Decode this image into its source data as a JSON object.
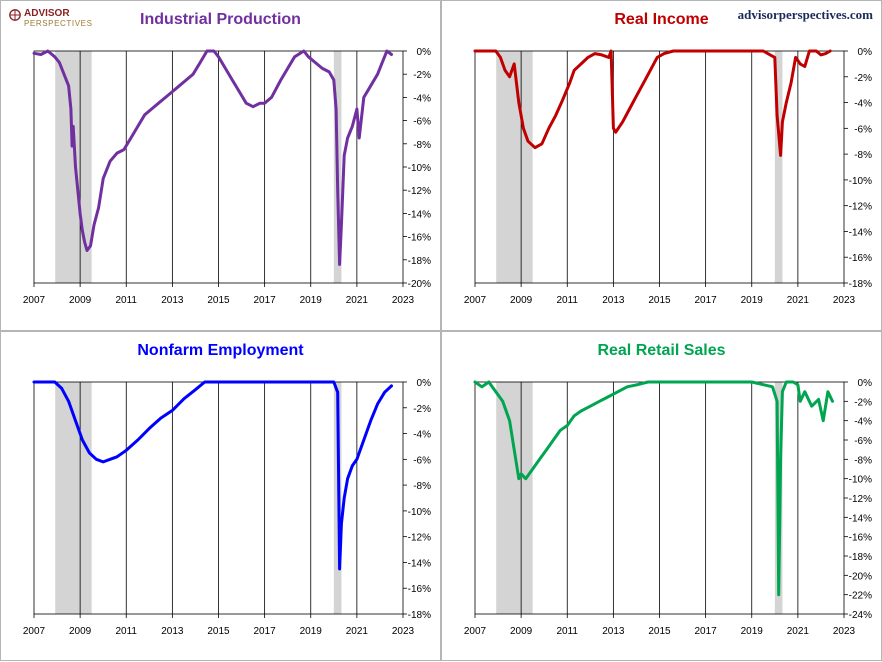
{
  "brand": {
    "name": "ADVISOR",
    "sub": "PERSPECTIVES"
  },
  "site": "advisorperspectives.com",
  "chart_data": [
    {
      "type": "line",
      "title": "Industrial Production",
      "color": "#7030a0",
      "xlim": [
        2007,
        2023
      ],
      "ylim": [
        -20,
        0
      ],
      "xticks": [
        "2007",
        "2009",
        "2011",
        "2013",
        "2015",
        "2017",
        "2019",
        "2021",
        "2023"
      ],
      "yticks": [
        "0%",
        "-2%",
        "-4%",
        "-6%",
        "-8%",
        "-10%",
        "-12%",
        "-14%",
        "-16%",
        "-18%",
        "-20%"
      ],
      "recessions": [
        [
          2007.92,
          2009.5
        ],
        [
          2020.0,
          2020.33
        ]
      ],
      "series": [
        {
          "x": [
            2007.0,
            2007.3,
            2007.6,
            2007.9,
            2008.1,
            2008.3,
            2008.5,
            2008.6,
            2008.65,
            2008.7,
            2008.8,
            2008.9,
            2009.0,
            2009.1,
            2009.2,
            2009.3,
            2009.45,
            2009.6,
            2009.8,
            2010.0,
            2010.3,
            2010.6,
            2010.9,
            2011.2,
            2011.5,
            2011.8,
            2012.1,
            2012.4,
            2012.7,
            2013.0,
            2013.3,
            2013.6,
            2013.9,
            2014.2,
            2014.5,
            2014.8,
            2015.0,
            2015.3,
            2015.6,
            2015.9,
            2016.2,
            2016.5,
            2016.8,
            2017.0,
            2017.3,
            2017.7,
            2018.0,
            2018.3,
            2018.7,
            2018.9,
            2019.2,
            2019.5,
            2019.8,
            2020.0,
            2020.1,
            2020.17,
            2020.25,
            2020.33,
            2020.45,
            2020.6,
            2020.8,
            2021.0,
            2021.1,
            2021.3,
            2021.6,
            2021.9,
            2022.1,
            2022.3,
            2022.5
          ],
          "y": [
            -0.2,
            -0.3,
            0,
            -0.5,
            -1,
            -2,
            -3,
            -5,
            -8.2,
            -6.5,
            -10,
            -12,
            -14,
            -15.5,
            -16.5,
            -17.2,
            -16.8,
            -15,
            -13.5,
            -11,
            -9.5,
            -8.8,
            -8.5,
            -7.5,
            -6.5,
            -5.5,
            -5,
            -4.5,
            -4,
            -3.5,
            -3,
            -2.5,
            -2,
            -1,
            0,
            0,
            -0.5,
            -1.5,
            -2.5,
            -3.5,
            -4.5,
            -4.8,
            -4.5,
            -4.5,
            -4,
            -2.5,
            -1.5,
            -0.5,
            0,
            -0.5,
            -1,
            -1.5,
            -1.8,
            -2.5,
            -5,
            -12,
            -18.4,
            -15,
            -9,
            -7.5,
            -6.5,
            -5,
            -7.5,
            -4,
            -3,
            -2,
            -1,
            0,
            -0.3
          ]
        }
      ]
    },
    {
      "type": "line",
      "title": "Real Income",
      "color": "#c00000",
      "xlim": [
        2007,
        2023
      ],
      "ylim": [
        -18,
        0
      ],
      "xticks": [
        "2007",
        "2009",
        "2011",
        "2013",
        "2015",
        "2017",
        "2019",
        "2021",
        "2023"
      ],
      "yticks": [
        "0%",
        "-2%",
        "-4%",
        "-6%",
        "-8%",
        "-10%",
        "-12%",
        "-14%",
        "-16%",
        "-18%"
      ],
      "recessions": [
        [
          2007.92,
          2009.5
        ],
        [
          2020.0,
          2020.33
        ]
      ],
      "series": [
        {
          "x": [
            2007.0,
            2007.5,
            2007.9,
            2008.1,
            2008.3,
            2008.5,
            2008.7,
            2008.9,
            2009.1,
            2009.3,
            2009.6,
            2009.9,
            2010.2,
            2010.5,
            2010.8,
            2011.1,
            2011.3,
            2011.6,
            2011.9,
            2012.2,
            2012.5,
            2012.8,
            2012.9,
            2013.0,
            2013.1,
            2013.4,
            2013.7,
            2014.0,
            2014.3,
            2014.6,
            2014.9,
            2015.2,
            2015.6,
            2016.0,
            2016.5,
            2017.0,
            2017.5,
            2018.0,
            2018.5,
            2019.0,
            2019.5,
            2019.8,
            2020.0,
            2020.1,
            2020.25,
            2020.33,
            2020.5,
            2020.7,
            2020.9,
            2021.1,
            2021.3,
            2021.5,
            2021.8,
            2022.0,
            2022.2,
            2022.4
          ],
          "y": [
            0,
            0,
            0,
            -0.5,
            -1.5,
            -2,
            -1,
            -4,
            -6,
            -7,
            -7.5,
            -7.2,
            -6,
            -5,
            -3.8,
            -2.5,
            -1.5,
            -1,
            -0.5,
            -0.2,
            -0.3,
            -0.5,
            0,
            -6,
            -6.3,
            -5.5,
            -4.5,
            -3.5,
            -2.5,
            -1.5,
            -0.5,
            -0.2,
            0,
            0,
            0,
            0,
            0,
            0,
            0,
            0,
            0,
            -0.3,
            -0.5,
            -5,
            -8.1,
            -5.5,
            -4,
            -2.5,
            -0.5,
            -1,
            -1.2,
            0,
            0,
            -0.3,
            -0.2,
            0
          ]
        }
      ]
    },
    {
      "type": "line",
      "title": "Nonfarm Employment",
      "color": "#0000ff",
      "xlim": [
        2007,
        2023
      ],
      "ylim": [
        -18,
        0
      ],
      "xticks": [
        "2007",
        "2009",
        "2011",
        "2013",
        "2015",
        "2017",
        "2019",
        "2021",
        "2023"
      ],
      "yticks": [
        "0%",
        "-2%",
        "-4%",
        "-6%",
        "-8%",
        "-10%",
        "-12%",
        "-14%",
        "-16%",
        "-18%"
      ],
      "recessions": [
        [
          2007.92,
          2009.5
        ],
        [
          2020.0,
          2020.33
        ]
      ],
      "series": [
        {
          "x": [
            2007.0,
            2007.5,
            2007.9,
            2008.2,
            2008.5,
            2008.8,
            2009.1,
            2009.4,
            2009.7,
            2010.0,
            2010.3,
            2010.6,
            2011.0,
            2011.5,
            2012.0,
            2012.5,
            2013.0,
            2013.5,
            2014.0,
            2014.4,
            2015.0,
            2016.0,
            2017.0,
            2018.0,
            2019.0,
            2020.0,
            2020.17,
            2020.25,
            2020.33,
            2020.45,
            2020.6,
            2020.8,
            2021.0,
            2021.3,
            2021.6,
            2021.9,
            2022.2,
            2022.5
          ],
          "y": [
            0,
            0,
            0,
            -0.5,
            -1.5,
            -3,
            -4.5,
            -5.5,
            -6,
            -6.2,
            -6,
            -5.8,
            -5.3,
            -4.5,
            -3.6,
            -2.8,
            -2.2,
            -1.3,
            -0.6,
            0,
            0,
            0,
            0,
            0,
            0,
            0,
            -0.8,
            -14.5,
            -11,
            -9,
            -7.5,
            -6.5,
            -6,
            -4.5,
            -3,
            -1.7,
            -0.8,
            -0.3
          ]
        }
      ]
    },
    {
      "type": "line",
      "title": "Real Retail Sales",
      "color": "#00a550",
      "xlim": [
        2007,
        2023
      ],
      "ylim": [
        -24,
        0
      ],
      "xticks": [
        "2007",
        "2009",
        "2011",
        "2013",
        "2015",
        "2017",
        "2019",
        "2021",
        "2023"
      ],
      "yticks": [
        "0%",
        "-2%",
        "-4%",
        "-6%",
        "-8%",
        "-10%",
        "-12%",
        "-14%",
        "-16%",
        "-18%",
        "-20%",
        "-22%",
        "-24%"
      ],
      "recessions": [
        [
          2007.92,
          2009.5
        ],
        [
          2020.0,
          2020.33
        ]
      ],
      "series": [
        {
          "x": [
            2007.0,
            2007.3,
            2007.6,
            2007.9,
            2008.2,
            2008.5,
            2008.7,
            2008.9,
            2009.0,
            2009.2,
            2009.5,
            2009.8,
            2010.1,
            2010.4,
            2010.7,
            2011.0,
            2011.3,
            2011.6,
            2012.0,
            2012.4,
            2012.8,
            2013.2,
            2013.6,
            2014.0,
            2014.5,
            2015.0,
            2016.0,
            2017.0,
            2018.0,
            2019.0,
            2019.9,
            2020.1,
            2020.17,
            2020.25,
            2020.33,
            2020.5,
            2020.8,
            2021.0,
            2021.1,
            2021.3,
            2021.6,
            2021.9,
            2022.1,
            2022.3,
            2022.5
          ],
          "y": [
            0,
            -0.5,
            0,
            -1,
            -2,
            -4,
            -7,
            -10,
            -9.5,
            -10,
            -9,
            -8,
            -7,
            -6,
            -5,
            -4.5,
            -3.5,
            -3,
            -2.5,
            -2,
            -1.5,
            -1,
            -0.5,
            -0.3,
            0,
            0,
            0,
            0,
            0,
            0,
            -0.5,
            -2,
            -22,
            -8,
            -1,
            0,
            0,
            -0.3,
            -2,
            -1,
            -2.5,
            -1.8,
            -4,
            -1,
            -2
          ]
        }
      ]
    }
  ]
}
